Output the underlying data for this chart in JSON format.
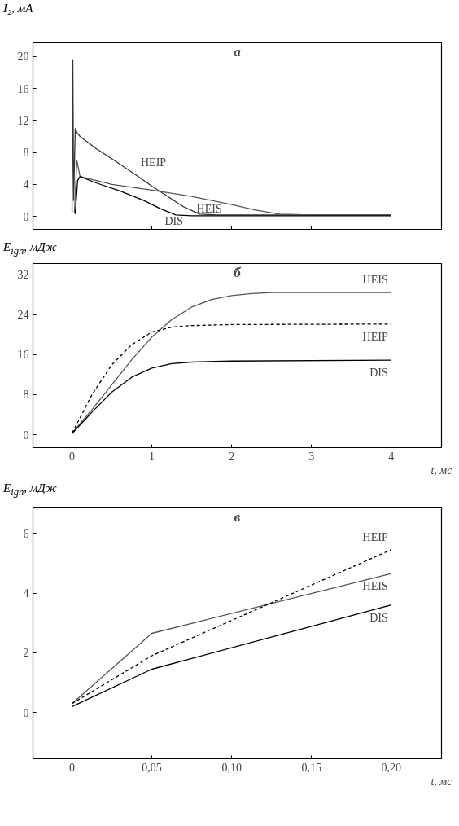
{
  "chart_data": [
    {
      "type": "line",
      "title": "а",
      "ylabel": "I₂, мА",
      "xlim": [
        -0.49,
        4.63
      ],
      "ylim": [
        -1.6,
        21.7
      ],
      "xticks": [
        0,
        1,
        2,
        3,
        4
      ],
      "yticks": [
        0,
        4,
        8,
        12,
        16,
        20
      ],
      "tick_labels": "y",
      "grid": false,
      "series": [
        {
          "name": "HEIP",
          "color": "#333333",
          "line_style": "solid",
          "x": [
            0,
            0.01,
            0.02,
            0.04,
            0.06,
            0.1,
            0.3,
            0.5,
            0.8,
            1.0,
            1.2,
            1.4,
            1.6,
            1.8,
            2.5,
            3,
            4
          ],
          "values": [
            0.5,
            19.5,
            2,
            11,
            10.5,
            10,
            8.5,
            7.2,
            5.2,
            3.8,
            2.5,
            1.2,
            0.3,
            0.2,
            0.2,
            0.2,
            0.2
          ]
        },
        {
          "name": "HEIS",
          "color": "#555555",
          "line_style": "solid",
          "x": [
            0.03,
            0.06,
            0.1,
            0.5,
            1.0,
            1.5,
            2.0,
            2.3,
            2.6,
            3,
            4
          ],
          "values": [
            0.5,
            7,
            5,
            4,
            3.3,
            2.5,
            1.5,
            0.8,
            0.3,
            0.2,
            0.2
          ]
        },
        {
          "name": "DIS",
          "color": "#000000",
          "line_style": "solid",
          "x": [
            0.04,
            0.07,
            0.1,
            0.3,
            0.6,
            0.9,
            1.1,
            1.3,
            1.5,
            2,
            3,
            4
          ],
          "values": [
            0.3,
            4.5,
            5,
            4.2,
            3.2,
            2,
            1,
            0.2,
            0.1,
            0.1,
            0.1,
            0.1
          ]
        }
      ]
    },
    {
      "type": "line",
      "title": "б",
      "ylabel": "E$_{ign}$, мДж",
      "xlabel": "t, мс",
      "xlim": [
        -0.49,
        4.63
      ],
      "ylim": [
        -2.6,
        34.2
      ],
      "xticks": [
        0,
        1,
        2,
        3,
        4
      ],
      "yticks": [
        0,
        8,
        16,
        24,
        32
      ],
      "grid": false,
      "series": [
        {
          "name": "HEIS",
          "color": "#555555",
          "line_style": "solid",
          "x": [
            0,
            0.25,
            0.5,
            0.75,
            1,
            1.25,
            1.5,
            1.75,
            2,
            2.25,
            2.5,
            4
          ],
          "values": [
            0.3,
            5,
            10,
            15,
            19.5,
            23,
            25.5,
            27,
            27.8,
            28.2,
            28.4,
            28.4
          ]
        },
        {
          "name": "HEIP",
          "color": "#000000",
          "line_style": "dashed",
          "x": [
            0,
            0.25,
            0.5,
            0.75,
            1,
            1.25,
            1.5,
            2,
            4
          ],
          "values": [
            0.3,
            8,
            14,
            18,
            20.5,
            21.5,
            21.8,
            22,
            22.1
          ]
        },
        {
          "name": "DIS",
          "color": "#000000",
          "line_style": "solid",
          "x": [
            0,
            0.25,
            0.5,
            0.75,
            1,
            1.25,
            1.5,
            2,
            4
          ],
          "values": [
            0.2,
            4.5,
            8.5,
            11.5,
            13.3,
            14.2,
            14.5,
            14.7,
            14.9
          ]
        }
      ]
    },
    {
      "type": "line",
      "title": "в",
      "ylabel": "E$_{ign}$, мДж",
      "xlabel": "t, мс",
      "xlim": [
        -0.0245,
        0.2315
      ],
      "ylim": [
        -1.55,
        6.85
      ],
      "xticks": [
        0,
        {
          "value": 0.05,
          "label": "0,05"
        },
        {
          "value": 0.1,
          "label": "0,10"
        },
        {
          "value": 0.15,
          "label": "0,15"
        },
        {
          "value": 0.2,
          "label": "0,20"
        }
      ],
      "yticks": [
        0,
        2,
        4,
        6
      ],
      "grid": false,
      "series": [
        {
          "name": "HEIS",
          "color": "#555555",
          "line_style": "solid",
          "x": [
            0,
            0.05,
            0.2
          ],
          "values": [
            0.3,
            2.65,
            4.65
          ]
        },
        {
          "name": "HEIP",
          "color": "#000000",
          "line_style": "dashed",
          "x": [
            0,
            0.05,
            0.2
          ],
          "values": [
            0.3,
            1.9,
            5.45
          ]
        },
        {
          "name": "DIS",
          "color": "#000000",
          "line_style": "solid",
          "x": [
            0,
            0.05,
            0.2
          ],
          "values": [
            0.2,
            1.45,
            3.6
          ]
        }
      ]
    }
  ]
}
